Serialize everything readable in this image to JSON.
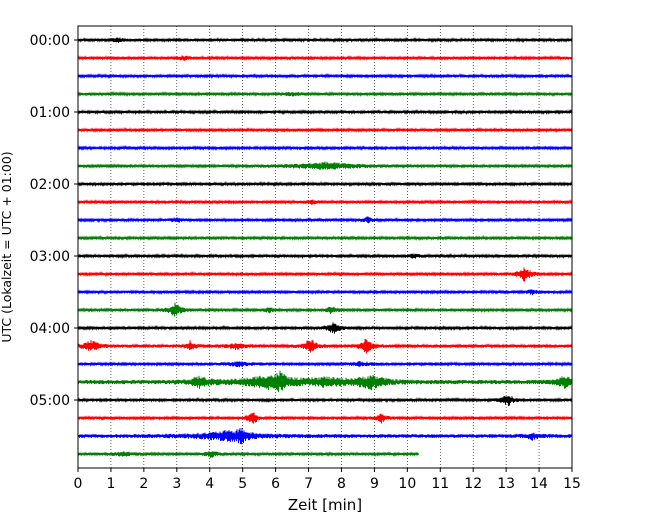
{
  "chart_data": {
    "type": "line",
    "title": "",
    "xlabel": "Zeit  [min]",
    "ylabel": "UTC (Lokalzeit = UTC + 01:00)",
    "xlim": [
      0,
      15
    ],
    "x_ticks": [
      0,
      1,
      2,
      3,
      4,
      5,
      6,
      7,
      8,
      9,
      10,
      11,
      12,
      13,
      14,
      15
    ],
    "x_tick_labels": [
      "0",
      "1",
      "2",
      "3",
      "4",
      "5",
      "6",
      "7",
      "8",
      "9",
      "10",
      "11",
      "12",
      "13",
      "14",
      "15"
    ],
    "y_tick_labels": [
      "00:00",
      "01:00",
      "02:00",
      "03:00",
      "04:00",
      "05:00"
    ],
    "y_tick_rows": [
      0,
      4,
      8,
      12,
      16,
      20
    ],
    "grid": "vertical dotted",
    "colors": [
      "#000000",
      "#ff0000",
      "#0000ff",
      "#008000"
    ],
    "trace_duration_min": 15,
    "rows": [
      {
        "label": "00:00",
        "color": "#000000",
        "base_amp": 0.22,
        "end": 15,
        "events": [
          {
            "t": 1.2,
            "a": 0.35,
            "w": 0.15
          }
        ]
      },
      {
        "label": "00:15",
        "color": "#ff0000",
        "base_amp": 0.22,
        "end": 15,
        "events": [
          {
            "t": 3.2,
            "a": 0.3,
            "w": 0.2
          }
        ]
      },
      {
        "label": "00:30",
        "color": "#0000ff",
        "base_amp": 0.22,
        "end": 15,
        "events": []
      },
      {
        "label": "00:45",
        "color": "#008000",
        "base_amp": 0.22,
        "end": 15,
        "events": [
          {
            "t": 6.5,
            "a": 0.25,
            "w": 0.2
          }
        ]
      },
      {
        "label": "01:00",
        "color": "#000000",
        "base_amp": 0.22,
        "end": 15,
        "events": []
      },
      {
        "label": "01:15",
        "color": "#ff0000",
        "base_amp": 0.22,
        "end": 15,
        "events": []
      },
      {
        "label": "01:30",
        "color": "#0000ff",
        "base_amp": 0.2,
        "end": 15,
        "events": []
      },
      {
        "label": "01:45",
        "color": "#008000",
        "base_amp": 0.22,
        "end": 15,
        "events": [
          {
            "t": 7.5,
            "a": 0.55,
            "w": 0.8
          }
        ]
      },
      {
        "label": "02:00",
        "color": "#000000",
        "base_amp": 0.22,
        "end": 15,
        "events": []
      },
      {
        "label": "02:15",
        "color": "#ff0000",
        "base_amp": 0.22,
        "end": 15,
        "events": [
          {
            "t": 7.1,
            "a": 0.45,
            "w": 0.1
          }
        ]
      },
      {
        "label": "02:30",
        "color": "#0000ff",
        "base_amp": 0.22,
        "end": 15,
        "events": [
          {
            "t": 3.0,
            "a": 0.35,
            "w": 0.15
          },
          {
            "t": 8.8,
            "a": 0.45,
            "w": 0.1
          }
        ]
      },
      {
        "label": "02:45",
        "color": "#008000",
        "base_amp": 0.2,
        "end": 15,
        "events": []
      },
      {
        "label": "03:00",
        "color": "#000000",
        "base_amp": 0.22,
        "end": 15,
        "events": [
          {
            "t": 10.2,
            "a": 0.3,
            "w": 0.15
          }
        ]
      },
      {
        "label": "03:15",
        "color": "#ff0000",
        "base_amp": 0.22,
        "end": 15,
        "events": [
          {
            "t": 13.55,
            "a": 1.3,
            "w": 0.15
          }
        ]
      },
      {
        "label": "03:30",
        "color": "#0000ff",
        "base_amp": 0.22,
        "end": 15,
        "events": [
          {
            "t": 13.8,
            "a": 0.35,
            "w": 0.15
          }
        ]
      },
      {
        "label": "03:45",
        "color": "#008000",
        "base_amp": 0.22,
        "end": 15,
        "events": [
          {
            "t": 2.95,
            "a": 1.2,
            "w": 0.15
          },
          {
            "t": 5.8,
            "a": 0.4,
            "w": 0.1
          },
          {
            "t": 7.7,
            "a": 0.55,
            "w": 0.15
          }
        ]
      },
      {
        "label": "04:00",
        "color": "#000000",
        "base_amp": 0.22,
        "end": 15,
        "events": [
          {
            "t": 7.75,
            "a": 1.0,
            "w": 0.15
          }
        ]
      },
      {
        "label": "04:15",
        "color": "#ff0000",
        "base_amp": 0.25,
        "end": 15,
        "events": [
          {
            "t": 0.4,
            "a": 0.9,
            "w": 0.2
          },
          {
            "t": 3.4,
            "a": 0.8,
            "w": 0.12
          },
          {
            "t": 4.8,
            "a": 0.5,
            "w": 0.2
          },
          {
            "t": 7.05,
            "a": 1.3,
            "w": 0.15
          },
          {
            "t": 8.75,
            "a": 1.2,
            "w": 0.15
          }
        ]
      },
      {
        "label": "04:30",
        "color": "#0000ff",
        "base_amp": 0.22,
        "end": 15,
        "events": [
          {
            "t": 4.9,
            "a": 0.35,
            "w": 0.3
          },
          {
            "t": 8.6,
            "a": 0.3,
            "w": 0.3
          }
        ]
      },
      {
        "label": "04:45",
        "color": "#008000",
        "base_amp": 0.35,
        "end": 15,
        "events": [
          {
            "t": 3.7,
            "a": 0.8,
            "w": 0.25
          },
          {
            "t": 5.7,
            "a": 1.0,
            "w": 0.6
          },
          {
            "t": 6.15,
            "a": 1.2,
            "w": 0.15
          },
          {
            "t": 7.5,
            "a": 0.6,
            "w": 0.6
          },
          {
            "t": 8.9,
            "a": 1.0,
            "w": 0.4
          },
          {
            "t": 14.8,
            "a": 1.0,
            "w": 0.2
          }
        ]
      },
      {
        "label": "05:00",
        "color": "#000000",
        "base_amp": 0.22,
        "end": 15,
        "events": [
          {
            "t": 13.05,
            "a": 1.0,
            "w": 0.15
          }
        ]
      },
      {
        "label": "05:15",
        "color": "#ff0000",
        "base_amp": 0.22,
        "end": 15,
        "events": [
          {
            "t": 5.3,
            "a": 1.2,
            "w": 0.12
          },
          {
            "t": 9.2,
            "a": 0.8,
            "w": 0.12
          }
        ]
      },
      {
        "label": "05:30",
        "color": "#0000ff",
        "base_amp": 0.3,
        "end": 15,
        "events": [
          {
            "t": 4.5,
            "a": 0.7,
            "w": 0.8
          },
          {
            "t": 4.95,
            "a": 1.1,
            "w": 0.12
          },
          {
            "t": 13.8,
            "a": 0.5,
            "w": 0.15
          }
        ]
      },
      {
        "label": "05:45",
        "color": "#008000",
        "base_amp": 0.22,
        "end": 10.35,
        "events": [
          {
            "t": 1.4,
            "a": 0.3,
            "w": 0.3
          },
          {
            "t": 4.05,
            "a": 0.5,
            "w": 0.15
          }
        ]
      }
    ]
  }
}
